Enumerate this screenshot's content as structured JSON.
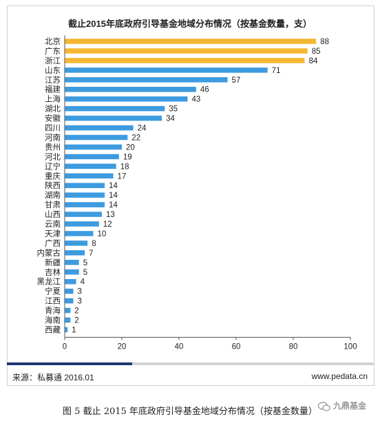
{
  "figure": {
    "caption": "图 5 截止 2015 年底政府引导基金地域分布情况（按基金数量）",
    "source": "来源：私募通  2016.01",
    "website": "www.pedata.cn",
    "watermark": "九鼎基金",
    "colors": {
      "highlight": "#f5b731",
      "normal": "#3d9be0",
      "footer_accent": "#1f3a73"
    }
  },
  "chart_data": {
    "type": "bar",
    "orientation": "horizontal",
    "title": "截止2015年底政府引导基金地域分布情况（按基金数量，支）",
    "categories": [
      "北京",
      "广东",
      "浙江",
      "山东",
      "江苏",
      "福建",
      "上海",
      "湖北",
      "安徽",
      "四川",
      "河南",
      "贵州",
      "河北",
      "辽宁",
      "重庆",
      "陕西",
      "湖南",
      "甘肃",
      "山西",
      "云南",
      "天津",
      "广西",
      "内蒙古",
      "新疆",
      "吉林",
      "黑龙江",
      "宁夏",
      "江西",
      "青海",
      "海南",
      "西藏"
    ],
    "values": [
      88,
      85,
      84,
      71,
      57,
      46,
      43,
      35,
      34,
      24,
      22,
      20,
      19,
      18,
      17,
      14,
      14,
      14,
      13,
      12,
      10,
      8,
      7,
      5,
      5,
      4,
      3,
      3,
      2,
      2,
      1
    ],
    "value_labels": [
      "88",
      "85",
      "84",
      "71",
      "57",
      "46",
      "43",
      "35",
      "34",
      "24",
      "22",
      "20",
      "19",
      "18",
      "17",
      "14",
      "14",
      "14",
      "13",
      "12",
      "10",
      "8",
      "7",
      "5",
      "5",
      "4",
      "3",
      "3",
      "2",
      "2",
      "1"
    ],
    "highlighted": [
      "北京",
      "广东",
      "浙江"
    ],
    "xlim": [
      0,
      100
    ],
    "xticks": [
      "0",
      "20",
      "40",
      "60",
      "80",
      "100"
    ],
    "grid": false,
    "legend": "none"
  }
}
